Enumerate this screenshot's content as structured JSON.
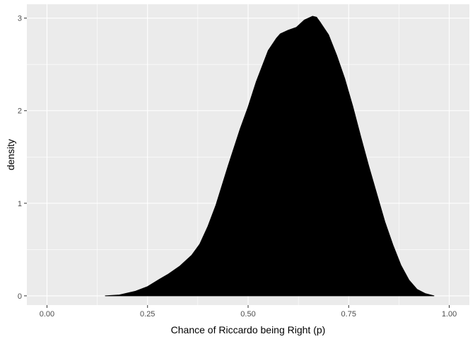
{
  "chart_data": {
    "type": "area",
    "title": "",
    "xlabel": "Chance of Riccardo being Right (p)",
    "ylabel": "density",
    "xlim": [
      -0.05,
      1.05
    ],
    "ylim": [
      -0.1,
      3.15
    ],
    "x_ticks": [
      0,
      0.25,
      0.5,
      0.75,
      1
    ],
    "x_tick_labels": [
      "0.00",
      "0.25",
      "0.50",
      "0.75",
      "1.00"
    ],
    "y_ticks": [
      0,
      1,
      2,
      3
    ],
    "y_tick_labels": [
      "0",
      "1",
      "2",
      "3"
    ],
    "grid": true,
    "legend": "none",
    "colors": {
      "panel": "#ebebeb",
      "grid": "#ffffff",
      "fill": "#000000",
      "tick": "#333333"
    },
    "x": [
      0.145,
      0.18,
      0.2,
      0.22,
      0.25,
      0.28,
      0.3,
      0.33,
      0.36,
      0.38,
      0.4,
      0.42,
      0.45,
      0.48,
      0.5,
      0.52,
      0.55,
      0.57,
      0.58,
      0.6,
      0.62,
      0.64,
      0.66,
      0.67,
      0.68,
      0.7,
      0.72,
      0.74,
      0.76,
      0.78,
      0.8,
      0.82,
      0.84,
      0.86,
      0.88,
      0.9,
      0.92,
      0.94,
      0.962
    ],
    "y": [
      0,
      0.01,
      0.03,
      0.05,
      0.1,
      0.18,
      0.23,
      0.32,
      0.44,
      0.56,
      0.75,
      0.98,
      1.4,
      1.8,
      2.04,
      2.31,
      2.65,
      2.78,
      2.83,
      2.87,
      2.9,
      2.98,
      3.02,
      3.01,
      2.95,
      2.82,
      2.6,
      2.35,
      2.05,
      1.72,
      1.4,
      1.1,
      0.8,
      0.55,
      0.33,
      0.17,
      0.07,
      0.025,
      0
    ]
  }
}
